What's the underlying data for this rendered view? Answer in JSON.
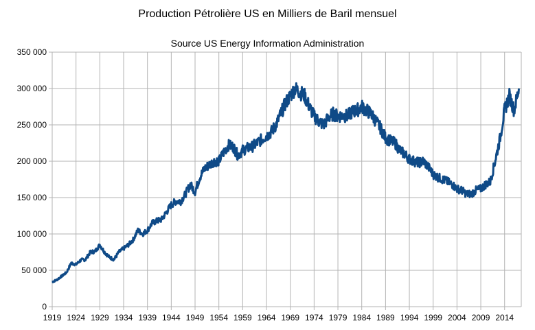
{
  "chart_data": {
    "type": "line",
    "title": "Production Pétrolière US en Milliers de Baril mensuel",
    "subtitle": "Source US Energy Information Administration",
    "xlabel": "",
    "ylabel": "",
    "xlim": [
      1919,
      2017.5
    ],
    "ylim": [
      0,
      350000
    ],
    "grid": true,
    "legend": "none",
    "line_color": "#0f4a87",
    "y_ticks": [
      "0",
      "50 000",
      "100 000",
      "150 000",
      "200 000",
      "250 000",
      "300 000",
      "350 000"
    ],
    "y_tick_values": [
      0,
      50000,
      100000,
      150000,
      200000,
      250000,
      300000,
      350000
    ],
    "x_ticks": [
      "1919",
      "1924",
      "1929",
      "1934",
      "1939",
      "1944",
      "1949",
      "1954",
      "1959",
      "1964",
      "1969",
      "1974",
      "1979",
      "1984",
      "1989",
      "1994",
      "1999",
      "2004",
      "2009",
      "2014"
    ],
    "x_tick_values": [
      1919,
      1924,
      1929,
      1934,
      1939,
      1944,
      1949,
      1954,
      1959,
      1964,
      1969,
      1974,
      1979,
      1984,
      1989,
      1994,
      1999,
      2004,
      2009,
      2014
    ],
    "series": [
      {
        "x": [
          1919,
          1920,
          1921,
          1922,
          1923,
          1924,
          1925,
          1926,
          1927,
          1928,
          1929,
          1930,
          1931,
          1932,
          1933,
          1934,
          1935,
          1936,
          1937,
          1938,
          1939,
          1940,
          1941,
          1942,
          1943,
          1944,
          1945,
          1946,
          1947,
          1948,
          1949,
          1950,
          1951,
          1952,
          1953,
          1954,
          1955,
          1956,
          1957,
          1958,
          1959,
          1960,
          1961,
          1962,
          1963,
          1964,
          1965,
          1966,
          1967,
          1968,
          1969,
          1970,
          1971,
          1972,
          1973,
          1974,
          1975,
          1976,
          1977,
          1978,
          1979,
          1980,
          1981,
          1982,
          1983,
          1984,
          1985,
          1986,
          1987,
          1988,
          1989,
          1990,
          1991,
          1992,
          1993,
          1994,
          1995,
          1996,
          1997,
          1998,
          1999,
          2000,
          2001,
          2002,
          2003,
          2004,
          2005,
          2006,
          2007,
          2008,
          2009,
          2010,
          2011,
          2012,
          2013,
          2014,
          2015,
          2016,
          2017
        ],
        "values": [
          34000,
          37000,
          42000,
          47000,
          60000,
          58000,
          64000,
          65000,
          75000,
          76000,
          85000,
          75000,
          68000,
          65000,
          75000,
          80000,
          85000,
          92000,
          105000,
          100000,
          105000,
          115000,
          118000,
          120000,
          130000,
          140000,
          145000,
          145000,
          155000,
          168000,
          158000,
          178000,
          190000,
          195000,
          200000,
          200000,
          212000,
          222000,
          220000,
          208000,
          215000,
          218000,
          220000,
          225000,
          230000,
          235000,
          240000,
          250000,
          265000,
          280000,
          290000,
          300000,
          295000,
          290000,
          275000,
          262000,
          255000,
          250000,
          260000,
          265000,
          262000,
          263000,
          262000,
          268000,
          270000,
          275000,
          270000,
          265000,
          255000,
          245000,
          232000,
          228000,
          225000,
          215000,
          210000,
          203000,
          200000,
          198000,
          200000,
          192000,
          182000,
          178000,
          175000,
          172000,
          168000,
          162000,
          160000,
          155000,
          155000,
          160000,
          162000,
          168000,
          172000,
          200000,
          230000,
          270000,
          290000,
          270000,
          300000
        ]
      }
    ]
  }
}
